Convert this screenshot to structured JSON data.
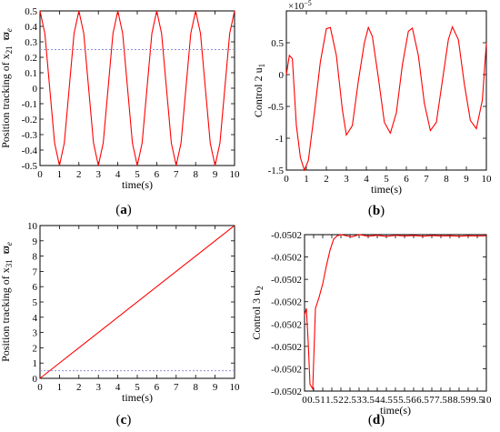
{
  "colors": {
    "signal": "#ff0000",
    "reference": "#8f8fd8",
    "axis": "#000000"
  },
  "chart_data": [
    {
      "id": "a",
      "type": "line",
      "panel_label": "(a)",
      "xlabel": "time(s)",
      "ylabel": "Position tracking of x",
      "ylabel_subscript": "21",
      "ylabel_tail": "ϖ",
      "ylabel_tail_subscript": "e",
      "xlim": [
        0,
        10
      ],
      "ylim": [
        -0.5,
        0.5
      ],
      "xticks": [
        0,
        1,
        2,
        3,
        4,
        5,
        6,
        7,
        8,
        9,
        10
      ],
      "yticks": [
        -0.5,
        -0.4,
        -0.3,
        -0.2,
        -0.1,
        0,
        0.1,
        0.2,
        0.3,
        0.4,
        0.5
      ],
      "ytick_labels": [
        "-0.5",
        "-0.4",
        "-0.3",
        "-0.2",
        "-0.1",
        "0",
        "0.1",
        "0.2",
        "0.3",
        "0.4",
        "0.5"
      ],
      "series": [
        {
          "style": "solid",
          "color": "#ff0000",
          "x": [
            0,
            0.25,
            0.5,
            0.75,
            1.0,
            1.25,
            1.5,
            1.75,
            2.0,
            2.25,
            2.5,
            2.75,
            3.0,
            3.25,
            3.5,
            3.75,
            4.0,
            4.25,
            4.5,
            4.75,
            5.0,
            5.25,
            5.5,
            5.75,
            6.0,
            6.25,
            6.5,
            6.75,
            7.0,
            7.25,
            7.5,
            7.75,
            8.0,
            8.25,
            8.5,
            8.75,
            9.0,
            9.25,
            9.5,
            9.75,
            10.0
          ],
          "y": [
            0.5,
            0.354,
            0,
            -0.354,
            -0.5,
            -0.354,
            0,
            0.354,
            0.5,
            0.354,
            0,
            -0.354,
            -0.5,
            -0.354,
            0,
            0.354,
            0.5,
            0.354,
            0,
            -0.354,
            -0.5,
            -0.354,
            0,
            0.354,
            0.5,
            0.354,
            0,
            -0.354,
            -0.5,
            -0.354,
            0,
            0.354,
            0.5,
            0.354,
            0,
            -0.354,
            -0.5,
            -0.354,
            0,
            0.354,
            0.5
          ]
        },
        {
          "style": "dotted",
          "color": "#8f8fd8",
          "x": [
            0,
            10
          ],
          "y": [
            0.25,
            0.25
          ]
        }
      ]
    },
    {
      "id": "b",
      "type": "line",
      "panel_label": "(b)",
      "xlabel": "time(s)",
      "ylabel": "Control 2 u",
      "ylabel_subscript": "1",
      "axis_exponent_base": "×10",
      "axis_exponent_power": "−5",
      "xlim": [
        0,
        10
      ],
      "ylim": [
        -1.5,
        1.0
      ],
      "xticks": [
        0,
        1,
        2,
        3,
        4,
        5,
        6,
        7,
        8,
        9,
        10
      ],
      "yticks": [
        -1.5,
        -1,
        -0.5,
        0,
        0.5
      ],
      "ytick_labels": [
        "-1.5",
        "-1",
        "-0.5",
        "0",
        "0.5"
      ],
      "series": [
        {
          "style": "solid",
          "color": "#ff0000",
          "x": [
            0,
            0.15,
            0.3,
            0.5,
            0.7,
            0.9,
            1.1,
            1.4,
            1.7,
            2.0,
            2.2,
            2.5,
            2.8,
            3.0,
            3.3,
            3.6,
            3.9,
            4.1,
            4.3,
            4.6,
            4.9,
            5.2,
            5.5,
            5.8,
            6.1,
            6.3,
            6.6,
            6.9,
            7.2,
            7.5,
            7.8,
            8.1,
            8.3,
            8.6,
            8.9,
            9.2,
            9.5,
            9.8,
            10.0
          ],
          "y": [
            0,
            0.3,
            0.25,
            -0.8,
            -1.3,
            -1.5,
            -1.35,
            -0.6,
            0.2,
            0.72,
            0.74,
            0.3,
            -0.55,
            -0.95,
            -0.8,
            -0.1,
            0.5,
            0.74,
            0.6,
            -0.05,
            -0.75,
            -0.92,
            -0.6,
            0.15,
            0.68,
            0.73,
            0.3,
            -0.45,
            -0.88,
            -0.75,
            -0.1,
            0.55,
            0.75,
            0.55,
            -0.15,
            -0.72,
            -0.85,
            -0.4,
            0.5
          ]
        }
      ]
    },
    {
      "id": "c",
      "type": "line",
      "panel_label": "(c)",
      "xlabel": "time(s)",
      "ylabel": "Position tracking of x",
      "ylabel_subscript": "31",
      "ylabel_tail": "ϖ",
      "ylabel_tail_subscript": "e",
      "xlim": [
        0,
        10
      ],
      "ylim": [
        0,
        10
      ],
      "xticks": [
        0,
        1,
        2,
        3,
        4,
        5,
        6,
        7,
        8,
        9,
        10
      ],
      "yticks": [
        0,
        1,
        2,
        3,
        4,
        5,
        6,
        7,
        8,
        9,
        10
      ],
      "ytick_labels": [
        "0",
        "1",
        "2",
        "3",
        "4",
        "5",
        "6",
        "7",
        "8",
        "9",
        "10"
      ],
      "series": [
        {
          "style": "solid",
          "color": "#ff0000",
          "x": [
            0,
            10
          ],
          "y": [
            0,
            10
          ]
        },
        {
          "style": "dotted",
          "color": "#8f8fd8",
          "x": [
            0,
            10
          ],
          "y": [
            0.5,
            0.5
          ]
        }
      ]
    },
    {
      "id": "d",
      "type": "line",
      "panel_label": "(d)",
      "xlabel": "time(s)",
      "ylabel": "Control 3 u",
      "ylabel_subscript": "2",
      "xlim": [
        0,
        10
      ],
      "ylim": [
        0,
        7
      ],
      "xticks": [
        0,
        0.5,
        1,
        1.5,
        2,
        2.5,
        3,
        3.5,
        4,
        4.5,
        5,
        5.5,
        6,
        6.5,
        7,
        7.5,
        8,
        8.5,
        9,
        9.5,
        10
      ],
      "xtick_labels": [
        "0",
        "0.5",
        "1",
        "1.5",
        "2",
        "2.5",
        "3",
        "3.5",
        "4",
        "4.5",
        "5",
        "5.5",
        "6",
        "6.5",
        "7",
        "7.5",
        "8",
        "8.5",
        "9",
        "9.5",
        "10"
      ],
      "yticks": [
        0,
        1,
        2,
        3,
        4,
        5,
        6,
        7
      ],
      "ytick_labels": [
        "-0.0502",
        "-0.0502",
        "-0.0502",
        "-0.0502",
        "-0.0502",
        "-0.0502",
        "-0.0502",
        "-0.0502"
      ],
      "series": [
        {
          "style": "solid",
          "color": "#ff0000",
          "x": [
            0,
            0.1,
            0.2,
            0.3,
            0.45,
            0.6,
            0.8,
            1.0,
            1.2,
            1.4,
            1.6,
            1.8,
            2.0,
            2.3,
            2.6,
            3.0,
            3.5,
            4.0,
            4.5,
            5.0,
            5.5,
            6.0,
            6.5,
            7.0,
            7.5,
            8.0,
            8.5,
            9.0,
            9.5,
            10.0
          ],
          "y": [
            3.4,
            3.7,
            2.2,
            0.3,
            0.1,
            3.7,
            4.2,
            4.8,
            5.6,
            6.3,
            6.8,
            6.95,
            7.0,
            6.95,
            6.9,
            7.0,
            6.93,
            6.97,
            6.92,
            6.97,
            6.94,
            6.96,
            6.93,
            6.96,
            6.94,
            6.95,
            6.93,
            6.95,
            6.94,
            6.95
          ]
        }
      ]
    }
  ]
}
